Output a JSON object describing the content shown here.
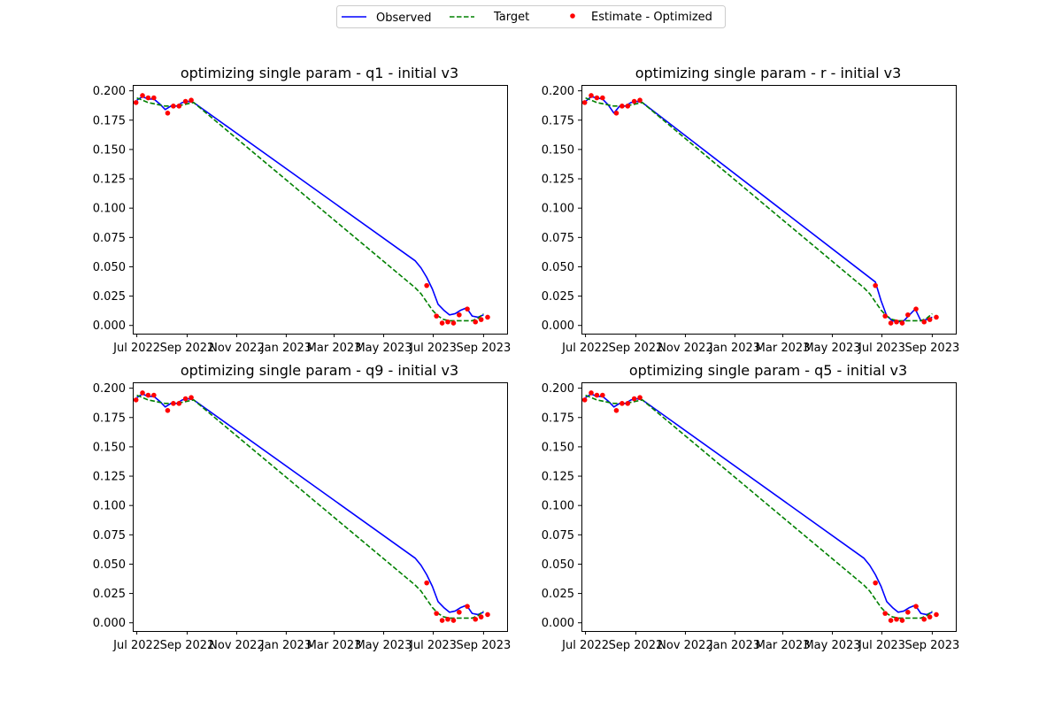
{
  "legend": {
    "placement": "top-center",
    "items": [
      {
        "label": "Observed",
        "style": "solid-line",
        "color": "#0000ff"
      },
      {
        "label": "Target",
        "style": "dashed-line",
        "color": "#008000"
      },
      {
        "label": "Estimate - Optimized",
        "style": "dot",
        "color": "#ff0000"
      }
    ]
  },
  "colors": {
    "observed": "#0000ff",
    "target": "#008000",
    "estimate": "#ff0000"
  },
  "chart_data": [
    {
      "type": "line",
      "title": "optimizing single param - q1 - initial v3",
      "x_type": "date",
      "xlim": [
        "2022-06-26",
        "2023-09-30"
      ],
      "ylim": [
        -0.007,
        0.205
      ],
      "x_ticks": [
        "Jul 2022",
        "Sep 2022",
        "Nov 2022",
        "Jan 2023",
        "Mar 2023",
        "May 2023",
        "Jul 2023",
        "Sep 2023"
      ],
      "x_tick_dates": [
        "2022-07-01",
        "2022-09-01",
        "2022-11-01",
        "2023-01-01",
        "2023-03-01",
        "2023-05-01",
        "2023-07-01",
        "2023-09-01"
      ],
      "y_ticks": [
        "0.000",
        "0.025",
        "0.050",
        "0.075",
        "0.100",
        "0.125",
        "0.150",
        "0.175",
        "0.200"
      ],
      "y_tick_values": [
        0,
        0.025,
        0.05,
        0.075,
        0.1,
        0.125,
        0.15,
        0.175,
        0.2
      ],
      "grid": false,
      "series": [
        {
          "name": "Observed",
          "type": "line",
          "x": [
            "2022-07-01",
            "2022-07-08",
            "2022-07-15",
            "2022-07-22",
            "2022-07-29",
            "2022-08-05",
            "2022-08-12",
            "2022-08-19",
            "2022-08-26",
            "2022-09-02",
            "2022-09-09",
            "2023-06-09",
            "2023-06-16",
            "2023-06-23",
            "2023-06-30",
            "2023-07-07",
            "2023-07-14",
            "2023-07-21",
            "2023-07-28",
            "2023-08-04",
            "2023-08-11",
            "2023-08-18",
            "2023-08-25",
            "2023-09-01"
          ],
          "y": [
            0.192,
            0.195,
            0.193,
            0.193,
            0.189,
            0.184,
            0.187,
            0.187,
            0.19,
            0.191,
            0.19,
            0.055,
            0.049,
            0.041,
            0.031,
            0.018,
            0.013,
            0.009,
            0.01,
            0.013,
            0.015,
            0.008,
            0.007,
            0.009
          ]
        },
        {
          "name": "Target",
          "type": "dashed",
          "x": [
            "2022-07-01",
            "2022-07-08",
            "2022-07-15",
            "2022-07-22",
            "2022-07-29",
            "2022-08-05",
            "2022-08-12",
            "2022-08-19",
            "2022-08-26",
            "2022-09-02",
            "2022-09-09",
            "2023-06-09",
            "2023-06-16",
            "2023-06-23",
            "2023-06-30",
            "2023-07-07",
            "2023-07-14",
            "2023-07-21",
            "2023-07-28",
            "2023-08-04",
            "2023-08-11",
            "2023-08-18",
            "2023-08-25",
            "2023-09-01"
          ],
          "y": [
            0.194,
            0.192,
            0.19,
            0.189,
            0.188,
            0.187,
            0.187,
            0.187,
            0.188,
            0.189,
            0.19,
            0.032,
            0.027,
            0.02,
            0.013,
            0.008,
            0.005,
            0.004,
            0.004,
            0.004,
            0.004,
            0.004,
            0.006,
            0.01
          ]
        },
        {
          "name": "Estimate - Optimized",
          "type": "scatter",
          "x": [
            "2022-06-30",
            "2022-07-08",
            "2022-07-15",
            "2022-07-22",
            "2022-08-08",
            "2022-08-15",
            "2022-08-22",
            "2022-08-30",
            "2022-09-06",
            "2023-06-23",
            "2023-07-05",
            "2023-07-12",
            "2023-07-19",
            "2023-07-26",
            "2023-08-02",
            "2023-08-12",
            "2023-08-22",
            "2023-08-29",
            "2023-09-06"
          ],
          "y": [
            0.19,
            0.196,
            0.194,
            0.194,
            0.181,
            0.187,
            0.187,
            0.191,
            0.192,
            0.034,
            0.008,
            0.002,
            0.003,
            0.002,
            0.009,
            0.014,
            0.003,
            0.005,
            0.007
          ]
        }
      ]
    },
    {
      "type": "line",
      "title": "optimizing single param - r - initial v3",
      "x_type": "date",
      "xlim": [
        "2022-06-26",
        "2023-09-30"
      ],
      "ylim": [
        -0.007,
        0.205
      ],
      "x_ticks": [
        "Jul 2022",
        "Sep 2022",
        "Nov 2022",
        "Jan 2023",
        "Mar 2023",
        "May 2023",
        "Jul 2023",
        "Sep 2023"
      ],
      "x_tick_dates": [
        "2022-07-01",
        "2022-09-01",
        "2022-11-01",
        "2023-01-01",
        "2023-03-01",
        "2023-05-01",
        "2023-07-01",
        "2023-09-01"
      ],
      "y_ticks": [
        "0.000",
        "0.025",
        "0.050",
        "0.075",
        "0.100",
        "0.125",
        "0.150",
        "0.175",
        "0.200"
      ],
      "y_tick_values": [
        0,
        0.025,
        0.05,
        0.075,
        0.1,
        0.125,
        0.15,
        0.175,
        0.2
      ],
      "grid": false,
      "series": [
        {
          "name": "Observed",
          "type": "line",
          "x": [
            "2022-07-01",
            "2022-07-08",
            "2022-07-15",
            "2022-07-22",
            "2022-07-29",
            "2022-08-05",
            "2022-08-12",
            "2022-08-19",
            "2022-08-26",
            "2022-09-02",
            "2022-09-09",
            "2023-06-23",
            "2023-06-30",
            "2023-07-07",
            "2023-07-14",
            "2023-07-21",
            "2023-07-28",
            "2023-08-04",
            "2023-08-11",
            "2023-08-18",
            "2023-08-25",
            "2023-09-01"
          ],
          "y": [
            0.191,
            0.195,
            0.194,
            0.193,
            0.188,
            0.181,
            0.187,
            0.187,
            0.19,
            0.191,
            0.19,
            0.037,
            0.021,
            0.008,
            0.004,
            0.003,
            0.004,
            0.009,
            0.014,
            0.004,
            0.005,
            0.007
          ]
        },
        {
          "name": "Target",
          "type": "dashed",
          "x": [
            "2022-07-01",
            "2022-07-08",
            "2022-07-15",
            "2022-07-22",
            "2022-07-29",
            "2022-08-05",
            "2022-08-12",
            "2022-08-19",
            "2022-08-26",
            "2022-09-02",
            "2022-09-09",
            "2023-06-09",
            "2023-06-16",
            "2023-06-23",
            "2023-06-30",
            "2023-07-07",
            "2023-07-14",
            "2023-07-21",
            "2023-07-28",
            "2023-08-04",
            "2023-08-11",
            "2023-08-18",
            "2023-08-25",
            "2023-09-01"
          ],
          "y": [
            0.194,
            0.192,
            0.19,
            0.189,
            0.188,
            0.187,
            0.187,
            0.187,
            0.188,
            0.189,
            0.19,
            0.032,
            0.027,
            0.02,
            0.013,
            0.008,
            0.005,
            0.004,
            0.004,
            0.004,
            0.004,
            0.004,
            0.006,
            0.01
          ]
        },
        {
          "name": "Estimate - Optimized",
          "type": "scatter",
          "x": [
            "2022-06-30",
            "2022-07-08",
            "2022-07-15",
            "2022-07-22",
            "2022-08-08",
            "2022-08-15",
            "2022-08-22",
            "2022-08-30",
            "2022-09-06",
            "2023-06-23",
            "2023-07-05",
            "2023-07-12",
            "2023-07-19",
            "2023-07-26",
            "2023-08-02",
            "2023-08-12",
            "2023-08-22",
            "2023-08-29",
            "2023-09-06"
          ],
          "y": [
            0.19,
            0.196,
            0.194,
            0.194,
            0.181,
            0.187,
            0.187,
            0.191,
            0.192,
            0.034,
            0.008,
            0.002,
            0.003,
            0.002,
            0.009,
            0.014,
            0.003,
            0.005,
            0.007
          ]
        }
      ]
    },
    {
      "type": "line",
      "title": "optimizing single param - q9 - initial v3",
      "x_type": "date",
      "xlim": [
        "2022-06-26",
        "2023-09-30"
      ],
      "ylim": [
        -0.007,
        0.205
      ],
      "x_ticks": [
        "Jul 2022",
        "Sep 2022",
        "Nov 2022",
        "Jan 2023",
        "Mar 2023",
        "May 2023",
        "Jul 2023",
        "Sep 2023"
      ],
      "x_tick_dates": [
        "2022-07-01",
        "2022-09-01",
        "2022-11-01",
        "2023-01-01",
        "2023-03-01",
        "2023-05-01",
        "2023-07-01",
        "2023-09-01"
      ],
      "y_ticks": [
        "0.000",
        "0.025",
        "0.050",
        "0.075",
        "0.100",
        "0.125",
        "0.150",
        "0.175",
        "0.200"
      ],
      "y_tick_values": [
        0,
        0.025,
        0.05,
        0.075,
        0.1,
        0.125,
        0.15,
        0.175,
        0.2
      ],
      "grid": false,
      "series": [
        {
          "name": "Observed",
          "type": "line",
          "x": [
            "2022-07-01",
            "2022-07-08",
            "2022-07-15",
            "2022-07-22",
            "2022-07-29",
            "2022-08-05",
            "2022-08-12",
            "2022-08-19",
            "2022-08-26",
            "2022-09-02",
            "2022-09-09",
            "2023-06-09",
            "2023-06-16",
            "2023-06-23",
            "2023-06-30",
            "2023-07-07",
            "2023-07-14",
            "2023-07-21",
            "2023-07-28",
            "2023-08-04",
            "2023-08-11",
            "2023-08-18",
            "2023-08-25",
            "2023-09-01"
          ],
          "y": [
            0.192,
            0.195,
            0.193,
            0.193,
            0.189,
            0.184,
            0.187,
            0.187,
            0.19,
            0.191,
            0.19,
            0.055,
            0.049,
            0.041,
            0.031,
            0.018,
            0.013,
            0.009,
            0.01,
            0.013,
            0.015,
            0.008,
            0.007,
            0.009
          ]
        },
        {
          "name": "Target",
          "type": "dashed",
          "x": [
            "2022-07-01",
            "2022-07-08",
            "2022-07-15",
            "2022-07-22",
            "2022-07-29",
            "2022-08-05",
            "2022-08-12",
            "2022-08-19",
            "2022-08-26",
            "2022-09-02",
            "2022-09-09",
            "2023-06-09",
            "2023-06-16",
            "2023-06-23",
            "2023-06-30",
            "2023-07-07",
            "2023-07-14",
            "2023-07-21",
            "2023-07-28",
            "2023-08-04",
            "2023-08-11",
            "2023-08-18",
            "2023-08-25",
            "2023-09-01"
          ],
          "y": [
            0.194,
            0.192,
            0.19,
            0.189,
            0.188,
            0.187,
            0.187,
            0.187,
            0.188,
            0.189,
            0.19,
            0.032,
            0.027,
            0.02,
            0.013,
            0.008,
            0.005,
            0.004,
            0.004,
            0.004,
            0.004,
            0.004,
            0.006,
            0.01
          ]
        },
        {
          "name": "Estimate - Optimized",
          "type": "scatter",
          "x": [
            "2022-06-30",
            "2022-07-08",
            "2022-07-15",
            "2022-07-22",
            "2022-08-08",
            "2022-08-15",
            "2022-08-22",
            "2022-08-30",
            "2022-09-06",
            "2023-06-23",
            "2023-07-05",
            "2023-07-12",
            "2023-07-19",
            "2023-07-26",
            "2023-08-02",
            "2023-08-12",
            "2023-08-22",
            "2023-08-29",
            "2023-09-06"
          ],
          "y": [
            0.19,
            0.196,
            0.194,
            0.194,
            0.181,
            0.187,
            0.187,
            0.191,
            0.192,
            0.034,
            0.008,
            0.002,
            0.003,
            0.002,
            0.009,
            0.014,
            0.003,
            0.005,
            0.007
          ]
        }
      ]
    },
    {
      "type": "line",
      "title": "optimizing single param - q5 - initial v3",
      "x_type": "date",
      "xlim": [
        "2022-06-26",
        "2023-09-30"
      ],
      "ylim": [
        -0.007,
        0.205
      ],
      "x_ticks": [
        "Jul 2022",
        "Sep 2022",
        "Nov 2022",
        "Jan 2023",
        "Mar 2023",
        "May 2023",
        "Jul 2023",
        "Sep 2023"
      ],
      "x_tick_dates": [
        "2022-07-01",
        "2022-09-01",
        "2022-11-01",
        "2023-01-01",
        "2023-03-01",
        "2023-05-01",
        "2023-07-01",
        "2023-09-01"
      ],
      "y_ticks": [
        "0.000",
        "0.025",
        "0.050",
        "0.075",
        "0.100",
        "0.125",
        "0.150",
        "0.175",
        "0.200"
      ],
      "y_tick_values": [
        0,
        0.025,
        0.05,
        0.075,
        0.1,
        0.125,
        0.15,
        0.175,
        0.2
      ],
      "grid": false,
      "series": [
        {
          "name": "Observed",
          "type": "line",
          "x": [
            "2022-07-01",
            "2022-07-08",
            "2022-07-15",
            "2022-07-22",
            "2022-07-29",
            "2022-08-05",
            "2022-08-12",
            "2022-08-19",
            "2022-08-26",
            "2022-09-02",
            "2022-09-09",
            "2023-06-09",
            "2023-06-16",
            "2023-06-23",
            "2023-06-30",
            "2023-07-07",
            "2023-07-14",
            "2023-07-21",
            "2023-07-28",
            "2023-08-04",
            "2023-08-11",
            "2023-08-18",
            "2023-08-25",
            "2023-09-01"
          ],
          "y": [
            0.192,
            0.195,
            0.193,
            0.193,
            0.189,
            0.184,
            0.187,
            0.187,
            0.19,
            0.191,
            0.19,
            0.055,
            0.049,
            0.041,
            0.031,
            0.018,
            0.013,
            0.009,
            0.01,
            0.013,
            0.015,
            0.008,
            0.007,
            0.009
          ]
        },
        {
          "name": "Target",
          "type": "dashed",
          "x": [
            "2022-07-01",
            "2022-07-08",
            "2022-07-15",
            "2022-07-22",
            "2022-07-29",
            "2022-08-05",
            "2022-08-12",
            "2022-08-19",
            "2022-08-26",
            "2022-09-02",
            "2022-09-09",
            "2023-06-09",
            "2023-06-16",
            "2023-06-23",
            "2023-06-30",
            "2023-07-07",
            "2023-07-14",
            "2023-07-21",
            "2023-07-28",
            "2023-08-04",
            "2023-08-11",
            "2023-08-18",
            "2023-08-25",
            "2023-09-01"
          ],
          "y": [
            0.194,
            0.192,
            0.19,
            0.189,
            0.188,
            0.187,
            0.187,
            0.187,
            0.188,
            0.189,
            0.19,
            0.032,
            0.027,
            0.02,
            0.013,
            0.008,
            0.005,
            0.004,
            0.004,
            0.004,
            0.004,
            0.004,
            0.006,
            0.01
          ]
        },
        {
          "name": "Estimate - Optimized",
          "type": "scatter",
          "x": [
            "2022-06-30",
            "2022-07-08",
            "2022-07-15",
            "2022-07-22",
            "2022-08-08",
            "2022-08-15",
            "2022-08-22",
            "2022-08-30",
            "2022-09-06",
            "2023-06-23",
            "2023-07-05",
            "2023-07-12",
            "2023-07-19",
            "2023-07-26",
            "2023-08-02",
            "2023-08-12",
            "2023-08-22",
            "2023-08-29",
            "2023-09-06"
          ],
          "y": [
            0.19,
            0.196,
            0.194,
            0.194,
            0.181,
            0.187,
            0.187,
            0.191,
            0.192,
            0.034,
            0.008,
            0.002,
            0.003,
            0.002,
            0.009,
            0.014,
            0.003,
            0.005,
            0.007
          ]
        }
      ]
    }
  ]
}
